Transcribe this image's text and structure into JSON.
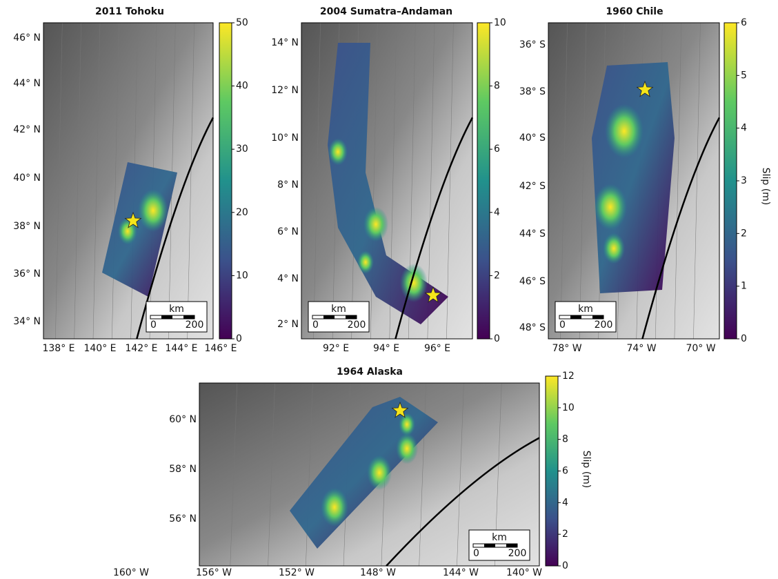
{
  "panels": [
    {
      "title": "2011 Tohoku",
      "lat_labels": [
        "46° N",
        "44° N",
        "42° N",
        "40° N",
        "38° N",
        "36° N",
        "34° N"
      ],
      "lon_labels": [
        "138° E",
        "140° E",
        "142° E",
        "144° E",
        "146° E"
      ],
      "colorbar": {
        "lim": [
          0,
          50
        ],
        "ticks": [
          0,
          10,
          20,
          30,
          40,
          50
        ]
      },
      "scalebar": {
        "unit": "km",
        "ticks": [
          0,
          200
        ]
      }
    },
    {
      "title": "2004 Sumatra–Andaman",
      "lat_labels": [
        "14° N",
        "12° N",
        "10° N",
        "8° N",
        "6° N",
        "4° N",
        "2° N"
      ],
      "lon_labels": [
        "92° E",
        "94° E",
        "96° E"
      ],
      "colorbar": {
        "lim": [
          0,
          10
        ],
        "ticks": [
          0,
          2,
          4,
          6,
          8,
          10
        ]
      },
      "scalebar": {
        "unit": "km",
        "ticks": [
          0,
          200
        ]
      }
    },
    {
      "title": "1960 Chile",
      "lat_labels": [
        "36° S",
        "38° S",
        "40° S",
        "42° S",
        "44° S",
        "46° S",
        "48° S"
      ],
      "lon_labels": [
        "78° W",
        "74° W",
        "70° W"
      ],
      "colorbar": {
        "lim": [
          0,
          6
        ],
        "ticks": [
          0,
          1,
          2,
          3,
          4,
          5,
          6
        ],
        "label": "Slip (m)"
      },
      "scalebar": {
        "unit": "km",
        "ticks": [
          0,
          200
        ]
      }
    },
    {
      "title": "1964 Alaska",
      "lat_labels": [
        "60° N",
        "58° N",
        "56° N"
      ],
      "lon_labels": [
        "160° W",
        "156° W",
        "152° W",
        "148° W",
        "144° W",
        "140° W"
      ],
      "colorbar": {
        "lim": [
          0,
          12
        ],
        "ticks": [
          0,
          2,
          4,
          6,
          8,
          10,
          12
        ],
        "label": "Slip (m)"
      },
      "scalebar": {
        "unit": "km",
        "ticks": [
          0,
          200
        ]
      }
    }
  ]
}
